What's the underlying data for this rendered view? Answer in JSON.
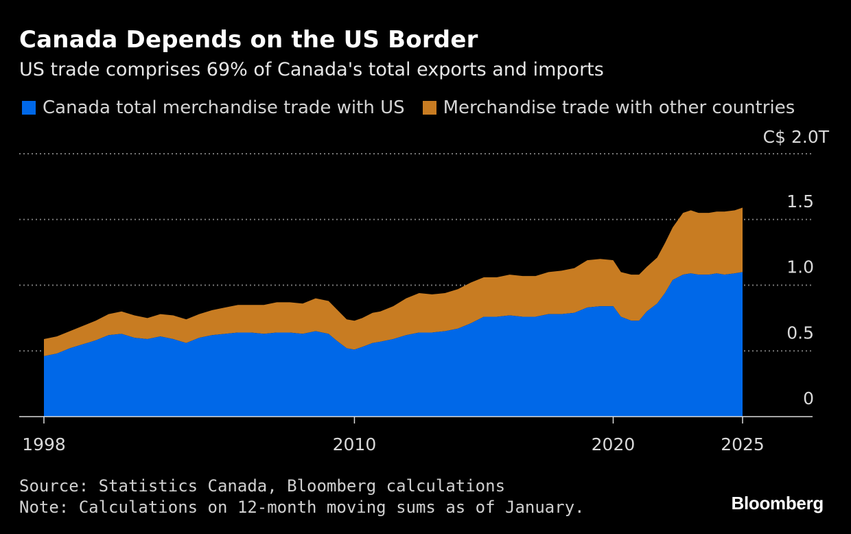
{
  "colors": {
    "us": "#0068e8",
    "other": "#c87c22",
    "grid": "#777777",
    "axis": "#dddddd",
    "text": "#d9d9d9"
  },
  "footer": {
    "source": "Source: Statistics Canada, Bloomberg calculations",
    "note": "Note: Calculations on 12-month moving sums as of January.",
    "brand": "Bloomberg"
  },
  "chart_data": {
    "type": "area",
    "title": "Canada Depends on the US Border",
    "subtitle": "US trade comprises 69% of Canada's total exports and imports",
    "legend": [
      "Canada total merchandise trade with US",
      "Merchandise trade with other countries"
    ],
    "ylim": [
      0,
      2.0
    ],
    "yticks": [
      0,
      0.5,
      1.0,
      1.5,
      2.0
    ],
    "ytick_labels": [
      "0",
      "0.5",
      "1.0",
      "1.5",
      "C$ 2.0T"
    ],
    "xlim": [
      1998,
      2026.8
    ],
    "xticks": [
      1998,
      2010,
      2020,
      2025
    ],
    "xtick_labels": [
      "1998",
      "2010",
      "2020",
      "2025"
    ],
    "x": [
      1998,
      1998.5,
      1999,
      1999.5,
      2000,
      2000.5,
      2001,
      2001.5,
      2002,
      2002.5,
      2003,
      2003.5,
      2004,
      2004.5,
      2005,
      2005.5,
      2006,
      2006.5,
      2007,
      2007.5,
      2008,
      2008.5,
      2009,
      2009.3,
      2009.7,
      2010,
      2010.3,
      2010.7,
      2011,
      2011.5,
      2012,
      2012.5,
      2013,
      2013.5,
      2014,
      2014.5,
      2015,
      2015.5,
      2016,
      2016.5,
      2017,
      2017.5,
      2018,
      2018.5,
      2019,
      2019.5,
      2020,
      2020.3,
      2020.7,
      2021,
      2021.3,
      2021.7,
      2022,
      2022.3,
      2022.7,
      2023,
      2023.3,
      2023.7,
      2024,
      2024.3,
      2024.7,
      2025
    ],
    "series": [
      {
        "name": "Canada total merchandise trade with US",
        "values": [
          0.46,
          0.48,
          0.52,
          0.55,
          0.58,
          0.62,
          0.63,
          0.6,
          0.59,
          0.61,
          0.59,
          0.56,
          0.6,
          0.62,
          0.63,
          0.64,
          0.64,
          0.63,
          0.64,
          0.64,
          0.63,
          0.65,
          0.63,
          0.58,
          0.52,
          0.51,
          0.53,
          0.56,
          0.57,
          0.59,
          0.62,
          0.64,
          0.64,
          0.65,
          0.67,
          0.71,
          0.76,
          0.76,
          0.77,
          0.76,
          0.76,
          0.78,
          0.78,
          0.79,
          0.83,
          0.84,
          0.84,
          0.76,
          0.73,
          0.73,
          0.8,
          0.86,
          0.94,
          1.04,
          1.08,
          1.09,
          1.08,
          1.08,
          1.09,
          1.08,
          1.09,
          1.1
        ]
      },
      {
        "name": "Merchandise trade with other countries",
        "values": [
          0.13,
          0.13,
          0.13,
          0.14,
          0.15,
          0.16,
          0.17,
          0.17,
          0.16,
          0.17,
          0.18,
          0.18,
          0.18,
          0.19,
          0.2,
          0.21,
          0.21,
          0.22,
          0.23,
          0.23,
          0.23,
          0.25,
          0.25,
          0.24,
          0.22,
          0.22,
          0.22,
          0.23,
          0.23,
          0.25,
          0.28,
          0.3,
          0.29,
          0.29,
          0.3,
          0.31,
          0.3,
          0.3,
          0.31,
          0.31,
          0.31,
          0.32,
          0.33,
          0.34,
          0.36,
          0.36,
          0.35,
          0.34,
          0.35,
          0.35,
          0.34,
          0.35,
          0.38,
          0.4,
          0.47,
          0.48,
          0.47,
          0.47,
          0.47,
          0.48,
          0.48,
          0.49
        ]
      }
    ]
  }
}
